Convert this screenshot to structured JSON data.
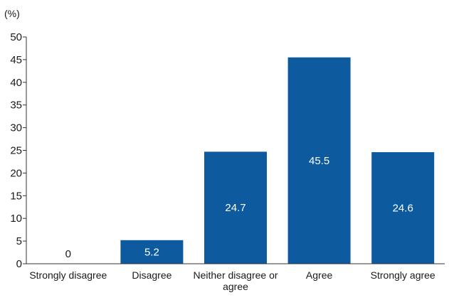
{
  "chart_data": {
    "type": "bar",
    "unit_label": "(%)",
    "categories": [
      [
        "Strongly disagree"
      ],
      [
        "Disagree"
      ],
      [
        "Neither disagree or",
        "agree"
      ],
      [
        "Agree"
      ],
      [
        "Strongly agree"
      ]
    ],
    "values": [
      0,
      5.2,
      24.7,
      45.5,
      24.6
    ],
    "value_labels": [
      "0",
      "5.2",
      "24.7",
      "45.5",
      "24.6"
    ],
    "yticks": [
      "0",
      "5",
      "10",
      "15",
      "20",
      "25",
      "30",
      "35",
      "40",
      "45",
      "50"
    ],
    "ylim": [
      0,
      50
    ],
    "grid": false,
    "bar_color": "#0d5a9e",
    "label_color_inside": "#ffffff",
    "label_color_outside": "#1a1a1a"
  }
}
